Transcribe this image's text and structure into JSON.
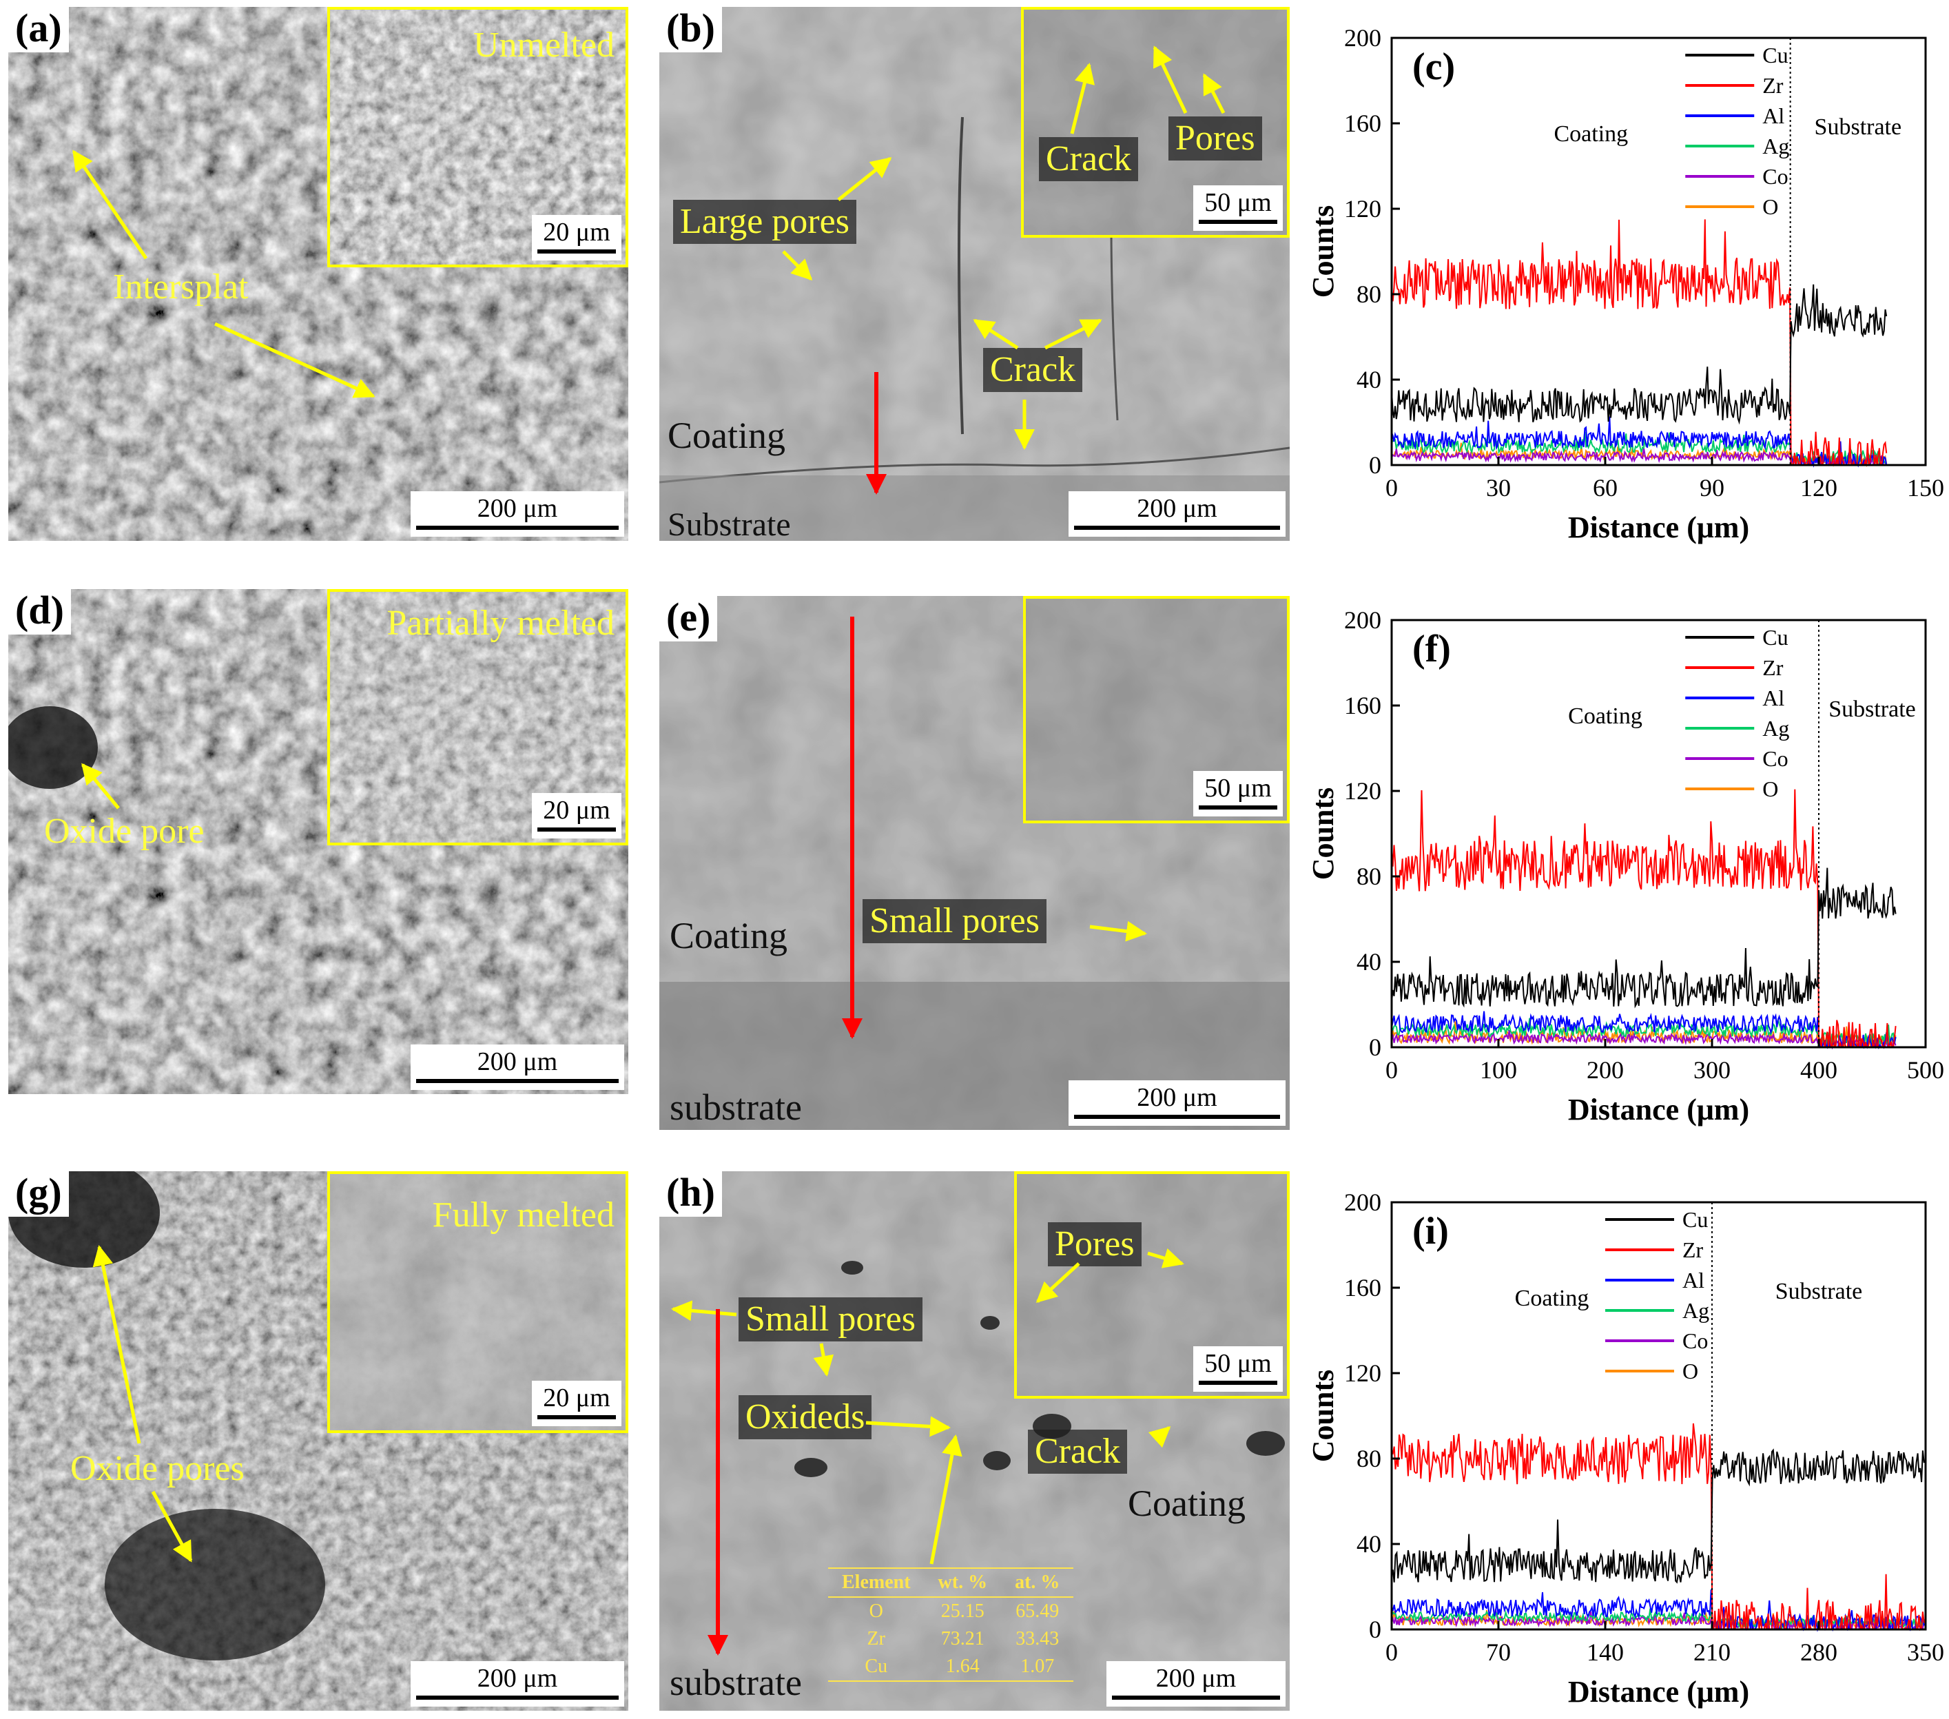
{
  "panels": {
    "a": {
      "label": "(a)",
      "inset": "Unmelted",
      "inset_scale": "20 μm",
      "annotation": "Intersplat",
      "scale": "200 μm"
    },
    "b": {
      "label": "(b)",
      "inset_scale": "50 μm",
      "inset_crack": "Crack",
      "inset_pores": "Pores",
      "large_pores": "Large pores",
      "crack": "Crack",
      "coating": "Coating",
      "substrate": "Substrate",
      "scale": "200 μm"
    },
    "d": {
      "label": "(d)",
      "inset": "Partially melted",
      "inset_scale": "20 μm",
      "annotation": "Oxide pore",
      "scale": "200 μm"
    },
    "e": {
      "label": "(e)",
      "inset_scale": "50 μm",
      "small_pores": "Small pores",
      "coating": "Coating",
      "substrate": "substrate",
      "scale": "200 μm"
    },
    "g": {
      "label": "(g)",
      "inset": "Fully melted",
      "inset_scale": "20 μm",
      "annotation": "Oxide pores",
      "scale": "200 μm"
    },
    "h": {
      "label": "(h)",
      "inset_pores": "Pores",
      "inset_scale": "50 μm",
      "small_pores": "Small pores",
      "oxideds": "Oxideds",
      "crack": "Crack",
      "coating": "Coating",
      "substrate": "substrate",
      "scale": "200 μm",
      "eds_table": {
        "headers": [
          "Element",
          "wt. %",
          "at. %"
        ],
        "rows": [
          [
            "O",
            "25.15",
            "65.49"
          ],
          [
            "Zr",
            "73.21",
            "33.43"
          ],
          [
            "Cu",
            "1.64",
            "1.07"
          ]
        ]
      }
    }
  },
  "colors": {
    "Cu": "#000000",
    "Zr": "#ff0000",
    "Al": "#0000ff",
    "Ag": "#00cc66",
    "Co": "#9900cc",
    "O": "#ff8c00",
    "inset_border": "#ffff00",
    "arrow_yellow": "#ffff00",
    "arrow_red": "#ff0000"
  },
  "chart_data": [
    {
      "id": "c",
      "label": "(c)",
      "type": "line",
      "xlabel": "Distance (μm)",
      "ylabel": "Counts",
      "xlim": [
        0,
        150
      ],
      "ylim": [
        0,
        200
      ],
      "xticks": [
        0,
        30,
        60,
        90,
        120,
        150
      ],
      "yticks": [
        0,
        40,
        80,
        120,
        160,
        200
      ],
      "legend": [
        "Cu",
        "Zr",
        "Al",
        "Ag",
        "Co",
        "O"
      ],
      "legend_position": "top-right",
      "interface_x": 112,
      "data_end_x": 139,
      "region_left": "Coating",
      "region_right": "Substrate",
      "series": [
        {
          "name": "Cu",
          "coating_mean": 28,
          "substrate_mean": 68,
          "noise": 8
        },
        {
          "name": "Zr",
          "coating_mean": 85,
          "substrate_mean": 1,
          "noise": 12
        },
        {
          "name": "Al",
          "coating_mean": 12,
          "substrate_mean": 2,
          "noise": 4
        },
        {
          "name": "Ag",
          "coating_mean": 9,
          "substrate_mean": 4,
          "noise": 3
        },
        {
          "name": "Co",
          "coating_mean": 4,
          "substrate_mean": 2,
          "noise": 2
        },
        {
          "name": "O",
          "coating_mean": 5,
          "substrate_mean": 2,
          "noise": 2
        }
      ]
    },
    {
      "id": "f",
      "label": "(f)",
      "type": "line",
      "xlabel": "Distance (μm)",
      "ylabel": "Counts",
      "xlim": [
        0,
        500
      ],
      "ylim": [
        0,
        200
      ],
      "xticks": [
        0,
        100,
        200,
        300,
        400,
        500
      ],
      "yticks": [
        0,
        40,
        80,
        120,
        160,
        200
      ],
      "legend": [
        "Cu",
        "Zr",
        "Al",
        "Ag",
        "Co",
        "O"
      ],
      "legend_position": "top-right",
      "interface_x": 400,
      "data_end_x": 472,
      "region_left": "Coating",
      "region_right": "Substrate",
      "series": [
        {
          "name": "Cu",
          "coating_mean": 27,
          "substrate_mean": 68,
          "noise": 8
        },
        {
          "name": "Zr",
          "coating_mean": 85,
          "substrate_mean": 1,
          "noise": 12
        },
        {
          "name": "Al",
          "coating_mean": 11,
          "substrate_mean": 2,
          "noise": 4
        },
        {
          "name": "Ag",
          "coating_mean": 8,
          "substrate_mean": 4,
          "noise": 3
        },
        {
          "name": "Co",
          "coating_mean": 4,
          "substrate_mean": 2,
          "noise": 2
        },
        {
          "name": "O",
          "coating_mean": 5,
          "substrate_mean": 3,
          "noise": 3
        }
      ]
    },
    {
      "id": "i",
      "label": "(i)",
      "type": "line",
      "xlabel": "Distance (μm)",
      "ylabel": "Counts",
      "xlim": [
        0,
        350
      ],
      "ylim": [
        0,
        200
      ],
      "xticks": [
        0,
        70,
        140,
        210,
        280,
        350
      ],
      "yticks": [
        0,
        40,
        80,
        120,
        160,
        200
      ],
      "legend": [
        "Cu",
        "Zr",
        "Al",
        "Ag",
        "Co",
        "O"
      ],
      "legend_position": "top-center",
      "interface_x": 210,
      "data_end_x": 349,
      "region_left": "Coating",
      "region_right": "Substrate",
      "series": [
        {
          "name": "Cu",
          "coating_mean": 30,
          "substrate_mean": 76,
          "noise": 8
        },
        {
          "name": "Zr",
          "coating_mean": 80,
          "substrate_mean": 2,
          "noise": 12
        },
        {
          "name": "Al",
          "coating_mean": 10,
          "substrate_mean": 3,
          "noise": 4
        },
        {
          "name": "Ag",
          "coating_mean": 6,
          "substrate_mean": 3,
          "noise": 2
        },
        {
          "name": "Co",
          "coating_mean": 4,
          "substrate_mean": 2,
          "noise": 2
        },
        {
          "name": "O",
          "coating_mean": 4,
          "substrate_mean": 3,
          "noise": 2
        }
      ]
    }
  ]
}
